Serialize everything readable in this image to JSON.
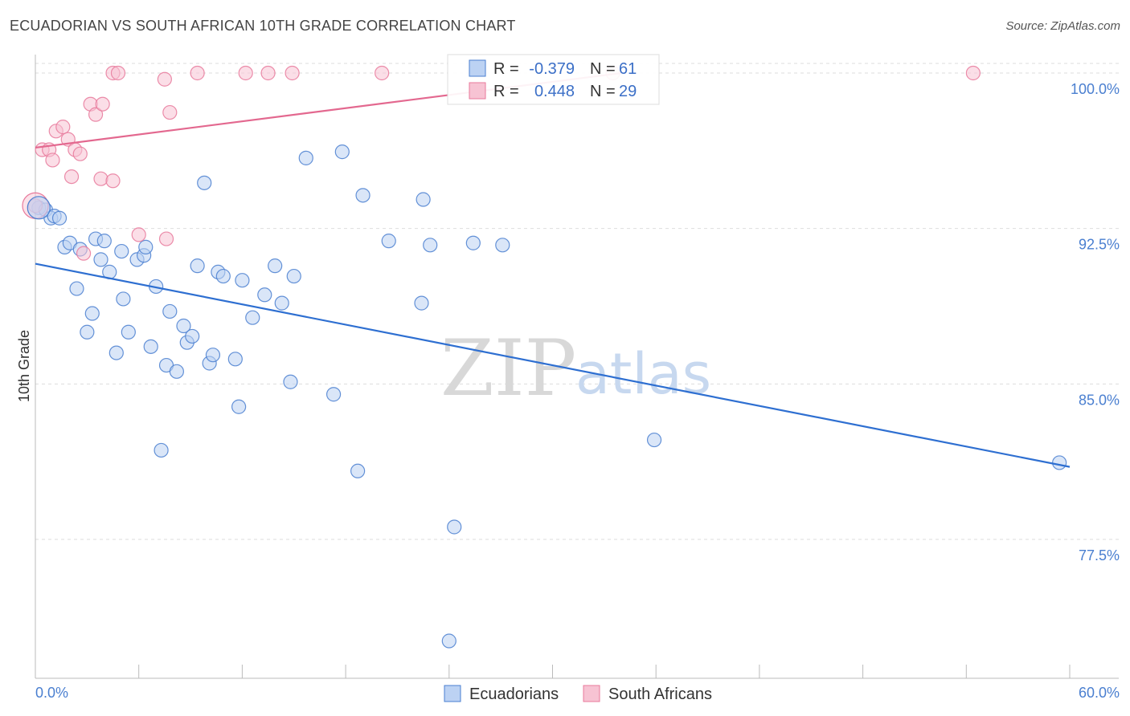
{
  "title": "ECUADORIAN VS SOUTH AFRICAN 10TH GRADE CORRELATION CHART",
  "source": "Source: ZipAtlas.com",
  "watermark": {
    "zip": "ZIP",
    "atlas": "atlas"
  },
  "colors": {
    "blue": "#4a7fd0",
    "blue_fill": "#bcd2f3",
    "blue_line": "#2e6fd1",
    "pink": "#e8799b",
    "pink_fill": "#f7c3d3",
    "pink_line": "#e3688f",
    "grid": "#dddddd",
    "axis": "#bbbbbb"
  },
  "chart_data": {
    "type": "scatter",
    "title": "ECUADORIAN VS SOUTH AFRICAN 10TH GRADE CORRELATION CHART",
    "xlabel": "",
    "ylabel": "10th Grade",
    "xlim": [
      0,
      60
    ],
    "ylim": [
      70.8,
      101.2
    ],
    "x_tick_labels": [
      "0.0%",
      "60.0%"
    ],
    "y_ticks": [
      77.5,
      85.0,
      92.5,
      100.0
    ],
    "y_tick_labels": [
      "77.5%",
      "85.0%",
      "92.5%",
      "100.0%"
    ],
    "grid": "horizontal dashed",
    "legend_position": "bottom-center",
    "stats_box": {
      "rows": [
        {
          "series": "Ecuadorians",
          "r_label": "R =",
          "r_value": "-0.379",
          "n_label": "N =",
          "n_value": "61"
        },
        {
          "series": "South Africans",
          "r_label": "R =",
          "r_value": "0.448",
          "n_label": "N =",
          "n_value": "29"
        }
      ]
    },
    "series": [
      {
        "name": "Ecuadorians",
        "color": "blue",
        "trend": {
          "x": [
            0,
            60
          ],
          "y": [
            90.8,
            81.0
          ]
        },
        "points": [
          [
            0.2,
            93.5
          ],
          [
            0.6,
            93.4
          ],
          [
            0.9,
            93.0
          ],
          [
            1.1,
            93.1
          ],
          [
            1.4,
            93.0
          ],
          [
            1.7,
            91.6
          ],
          [
            2.0,
            91.8
          ],
          [
            2.4,
            89.6
          ],
          [
            2.6,
            91.5
          ],
          [
            3.0,
            87.5
          ],
          [
            3.3,
            88.4
          ],
          [
            3.5,
            92.0
          ],
          [
            3.8,
            91.0
          ],
          [
            4.0,
            91.9
          ],
          [
            4.3,
            90.4
          ],
          [
            4.7,
            86.5
          ],
          [
            5.0,
            91.4
          ],
          [
            5.1,
            89.1
          ],
          [
            5.4,
            87.5
          ],
          [
            5.9,
            91.0
          ],
          [
            6.3,
            91.2
          ],
          [
            6.4,
            91.6
          ],
          [
            6.7,
            86.8
          ],
          [
            7.0,
            89.7
          ],
          [
            7.3,
            81.8
          ],
          [
            7.6,
            85.9
          ],
          [
            7.8,
            88.5
          ],
          [
            8.2,
            85.6
          ],
          [
            8.6,
            87.8
          ],
          [
            8.8,
            87.0
          ],
          [
            9.1,
            87.3
          ],
          [
            9.4,
            90.7
          ],
          [
            9.8,
            94.7
          ],
          [
            10.1,
            86.0
          ],
          [
            10.3,
            86.4
          ],
          [
            10.6,
            90.4
          ],
          [
            10.9,
            90.2
          ],
          [
            11.6,
            86.2
          ],
          [
            11.8,
            83.9
          ],
          [
            12.0,
            90.0
          ],
          [
            12.6,
            88.2
          ],
          [
            13.3,
            89.3
          ],
          [
            13.9,
            90.7
          ],
          [
            14.3,
            88.9
          ],
          [
            14.8,
            85.1
          ],
          [
            15.0,
            90.2
          ],
          [
            15.7,
            95.9
          ],
          [
            17.3,
            84.5
          ],
          [
            17.8,
            96.2
          ],
          [
            18.7,
            80.8
          ],
          [
            19.0,
            94.1
          ],
          [
            20.5,
            91.9
          ],
          [
            22.4,
            88.9
          ],
          [
            22.5,
            93.9
          ],
          [
            22.9,
            91.7
          ],
          [
            24.0,
            72.6
          ],
          [
            24.3,
            78.1
          ],
          [
            25.4,
            91.8
          ],
          [
            27.1,
            91.7
          ],
          [
            35.9,
            82.3
          ],
          [
            59.4,
            81.2
          ]
        ]
      },
      {
        "name": "South Africans",
        "color": "pink",
        "trend": {
          "x": [
            0,
            34
          ],
          "y": [
            96.4,
            100.0
          ]
        },
        "points": [
          [
            0.0,
            93.6
          ],
          [
            0.4,
            96.3
          ],
          [
            0.8,
            96.3
          ],
          [
            1.0,
            95.8
          ],
          [
            1.2,
            97.2
          ],
          [
            1.6,
            97.4
          ],
          [
            1.9,
            96.8
          ],
          [
            2.1,
            95.0
          ],
          [
            2.3,
            96.3
          ],
          [
            2.6,
            96.1
          ],
          [
            2.8,
            91.3
          ],
          [
            3.2,
            98.5
          ],
          [
            3.5,
            98.0
          ],
          [
            3.8,
            94.9
          ],
          [
            3.9,
            98.5
          ],
          [
            4.5,
            94.8
          ],
          [
            4.5,
            100.0
          ],
          [
            4.8,
            100.0
          ],
          [
            6.0,
            92.2
          ],
          [
            7.5,
            99.7
          ],
          [
            7.6,
            92.0
          ],
          [
            7.8,
            98.1
          ],
          [
            9.4,
            100.0
          ],
          [
            12.2,
            100.0
          ],
          [
            13.5,
            100.0
          ],
          [
            14.9,
            100.0
          ],
          [
            20.1,
            100.0
          ],
          [
            33.5,
            100.0
          ],
          [
            54.4,
            100.0
          ]
        ]
      }
    ]
  }
}
